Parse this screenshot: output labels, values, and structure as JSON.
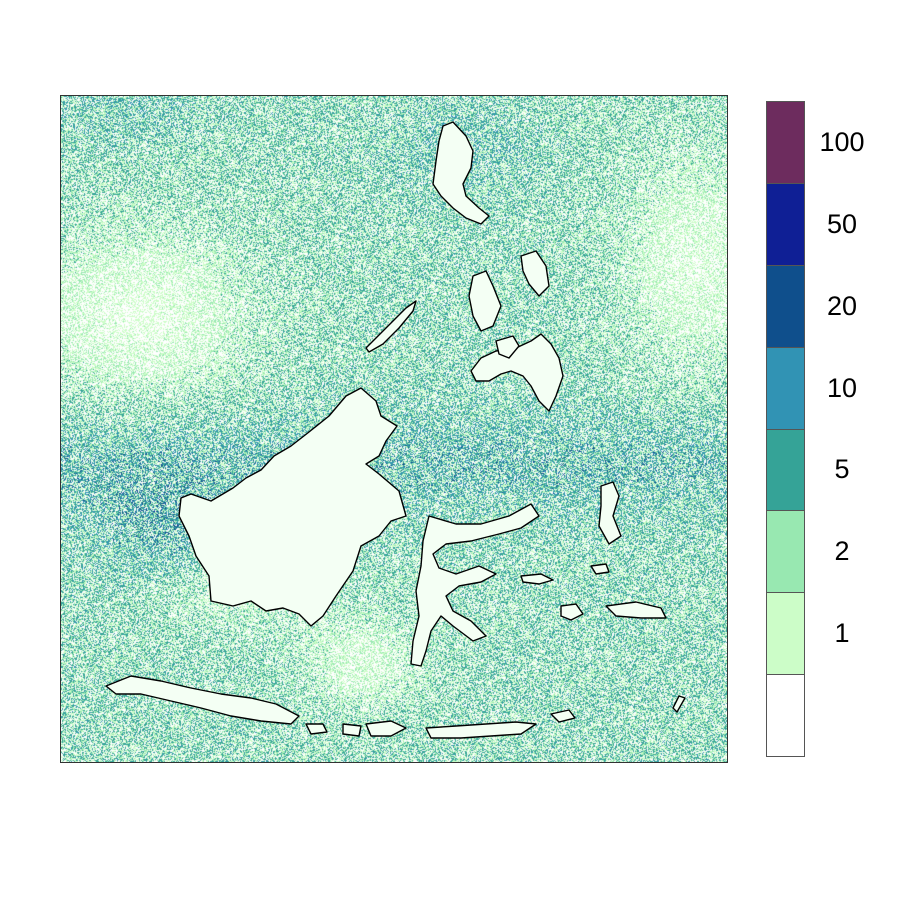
{
  "map": {
    "colorbar": {
      "colors": [
        "#ffffff",
        "#ccfdc8",
        "#98e8b1",
        "#35a397",
        "#3193b4",
        "#0f4f8c",
        "#0f1f95",
        "#6d2c5e"
      ],
      "bin_edges": [
        0,
        1,
        2,
        5,
        10,
        20,
        50,
        100
      ],
      "labels": [
        "1",
        "2",
        "5",
        "10",
        "20",
        "50",
        "100"
      ]
    },
    "coastline_color": "#000000"
  }
}
